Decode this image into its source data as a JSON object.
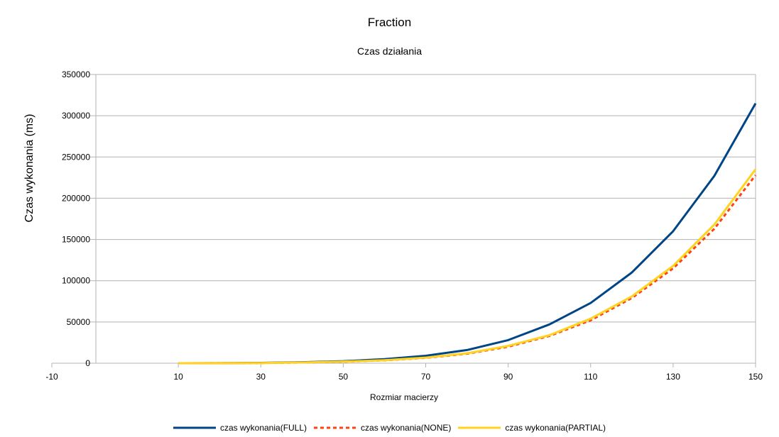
{
  "chart_data": {
    "type": "line",
    "title": "Fraction",
    "subtitle": "Czas działania",
    "xlabel": "Rozmiar macierzy",
    "ylabel": "Czas wykonania (ms)",
    "xlim": [
      -10,
      150
    ],
    "ylim": [
      0,
      350000
    ],
    "x_ticks": [
      -10,
      10,
      30,
      50,
      70,
      90,
      110,
      130,
      150
    ],
    "y_ticks": [
      0,
      50000,
      100000,
      150000,
      200000,
      250000,
      300000,
      350000
    ],
    "grid": true,
    "legend_position": "bottom",
    "x": [
      10,
      20,
      30,
      40,
      50,
      60,
      70,
      80,
      90,
      100,
      110,
      120,
      130,
      140,
      150
    ],
    "series": [
      {
        "name": "czas wykonania(FULL)",
        "color": "#004586",
        "style": "solid",
        "values": [
          0,
          100,
          400,
          1200,
          2500,
          5000,
          9000,
          16000,
          28000,
          47000,
          73000,
          110000,
          160000,
          227000,
          315000
        ]
      },
      {
        "name": "czas wykonania(NONE)",
        "color": "#ff420e",
        "style": "dashed",
        "values": [
          0,
          80,
          300,
          900,
          1800,
          3500,
          6500,
          11500,
          20000,
          33000,
          52000,
          79000,
          115000,
          163000,
          228000
        ]
      },
      {
        "name": "czas wykonania(PARTIAL)",
        "color": "#ffd320",
        "style": "solid",
        "values": [
          0,
          80,
          300,
          900,
          1900,
          3600,
          6800,
          12000,
          21000,
          34000,
          54000,
          81000,
          118000,
          168000,
          235000
        ]
      }
    ]
  }
}
